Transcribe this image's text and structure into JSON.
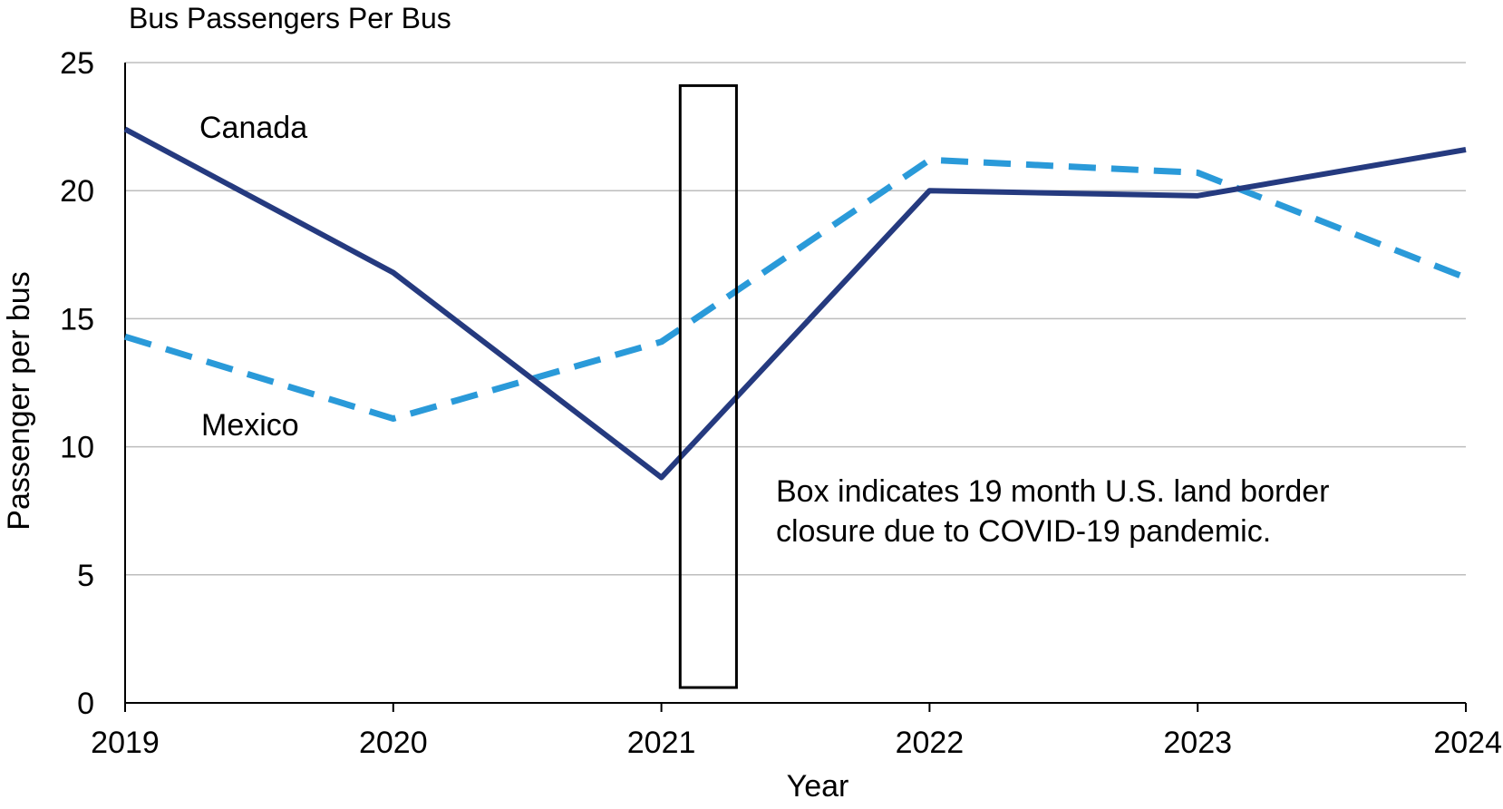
{
  "chart_data": {
    "type": "line",
    "title": "Bus Passengers Per Bus",
    "xlabel": "Year",
    "ylabel": "Passenger per bus",
    "x": [
      "2019",
      "2020",
      "2021",
      "2022",
      "2023",
      "2024"
    ],
    "ylim": [
      0,
      25
    ],
    "yticks": [
      0,
      5,
      10,
      15,
      20,
      25
    ],
    "grid": true,
    "series": [
      {
        "name": "Canada",
        "values": [
          22.4,
          16.8,
          8.8,
          20.0,
          19.8,
          21.6
        ],
        "color": "#253a7f",
        "style": "solid"
      },
      {
        "name": "Mexico",
        "values": [
          14.3,
          11.1,
          14.1,
          21.2,
          20.7,
          16.6
        ],
        "color": "#2a9ad9",
        "style": "dashed"
      }
    ],
    "highlight_box": {
      "x_start": 2021.07,
      "x_end": 2021.28,
      "y_start": 0.6,
      "y_end": 24.1
    },
    "annotation": {
      "lines": [
        "Box indicates 19 month U.S. land border",
        "closure due to COVID-19 pandemic."
      ]
    }
  }
}
